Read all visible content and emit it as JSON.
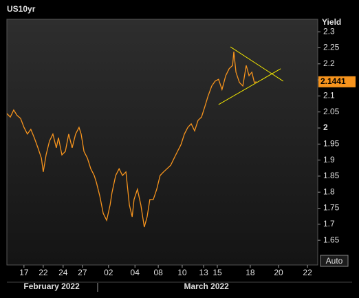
{
  "chart_data": {
    "type": "line",
    "title": "US10yr",
    "y_axis_label": "Yield",
    "button": "Auto",
    "color": "#f7941d",
    "x": [
      0,
      1.1,
      2.2,
      3.3,
      4.4,
      5.5,
      6.6,
      7.7,
      8.8,
      10.0,
      11.1,
      11.7,
      12.6,
      13.7,
      14.8,
      15.9,
      16.6,
      17.7,
      18.8,
      19.9,
      21.0,
      22.1,
      23.2,
      23.9,
      24.8,
      25.9,
      27.0,
      28.1,
      28.8,
      29.9,
      31.0,
      32.1,
      33.2,
      33.8,
      35.0,
      36.1,
      37.2,
      38.3,
      39.4,
      40.3,
      40.9,
      42.0,
      43.1,
      44.2,
      45.1,
      46.0,
      47.1,
      48.2,
      49.3,
      50.4,
      51.5,
      52.7,
      53.8,
      54.9,
      56.0,
      57.1,
      58.2,
      59.3,
      60.4,
      61.5,
      62.6,
      63.7,
      64.7,
      65.9,
      67.0,
      68.1,
      69.2,
      70.4,
      71.5,
      72.6,
      73.0,
      73.7,
      74.8,
      75.9,
      77.0,
      77.9,
      78.8,
      79.6,
      80.3
    ],
    "values": [
      2.045,
      2.034,
      2.056,
      2.039,
      2.03,
      2.002,
      1.981,
      1.996,
      1.97,
      1.938,
      1.906,
      1.863,
      1.916,
      1.959,
      1.981,
      1.938,
      1.97,
      1.916,
      1.927,
      1.981,
      1.938,
      1.981,
      2.002,
      1.981,
      1.927,
      1.906,
      1.873,
      1.852,
      1.83,
      1.788,
      1.734,
      1.712,
      1.76,
      1.798,
      1.852,
      1.873,
      1.852,
      1.863,
      1.76,
      1.723,
      1.777,
      1.809,
      1.76,
      1.691,
      1.723,
      1.777,
      1.777,
      1.809,
      1.852,
      1.863,
      1.873,
      1.884,
      1.906,
      1.927,
      1.948,
      1.981,
      2.002,
      2.013,
      1.991,
      2.024,
      2.034,
      2.067,
      2.099,
      2.131,
      2.146,
      2.152,
      2.12,
      2.163,
      2.185,
      2.195,
      2.238,
      2.174,
      2.142,
      2.131,
      2.195,
      2.163,
      2.174,
      2.142,
      2.1441
    ],
    "trendlines": [
      {
        "color": "#f2e600",
        "x": [
          71.9,
          88.9
        ],
        "y": [
          2.253,
          2.146
        ]
      },
      {
        "color": "#f2e600",
        "x": [
          68.1,
          88.1
        ],
        "y": [
          2.073,
          2.185
        ]
      }
    ],
    "xlim": [
      0,
      100
    ],
    "ylim": [
      1.573,
      2.339
    ],
    "yticks": [
      1.65,
      1.7,
      1.75,
      1.8,
      1.85,
      1.9,
      1.95,
      2,
      2.05,
      2.1,
      2.15,
      2.2,
      2.25,
      2.3
    ],
    "xticks": [
      {
        "value": 5.5,
        "label": "17"
      },
      {
        "value": 11.7,
        "label": "22"
      },
      {
        "value": 18.1,
        "label": "24"
      },
      {
        "value": 24.3,
        "label": "27"
      },
      {
        "value": 32.7,
        "label": "02"
      },
      {
        "value": 41.2,
        "label": "04"
      },
      {
        "value": 48.7,
        "label": "08"
      },
      {
        "value": 56.4,
        "label": "10"
      },
      {
        "value": 63.3,
        "label": "13"
      },
      {
        "value": 67.7,
        "label": "15"
      },
      {
        "value": 78.3,
        "label": "18"
      },
      {
        "value": 87.4,
        "label": "20"
      },
      {
        "value": 96.7,
        "label": "22"
      }
    ],
    "month_labels": [
      {
        "value": 14.4,
        "label": "February 2022"
      },
      {
        "value": 64.2,
        "label": "March 2022"
      }
    ],
    "month_separator": 29.2
  }
}
